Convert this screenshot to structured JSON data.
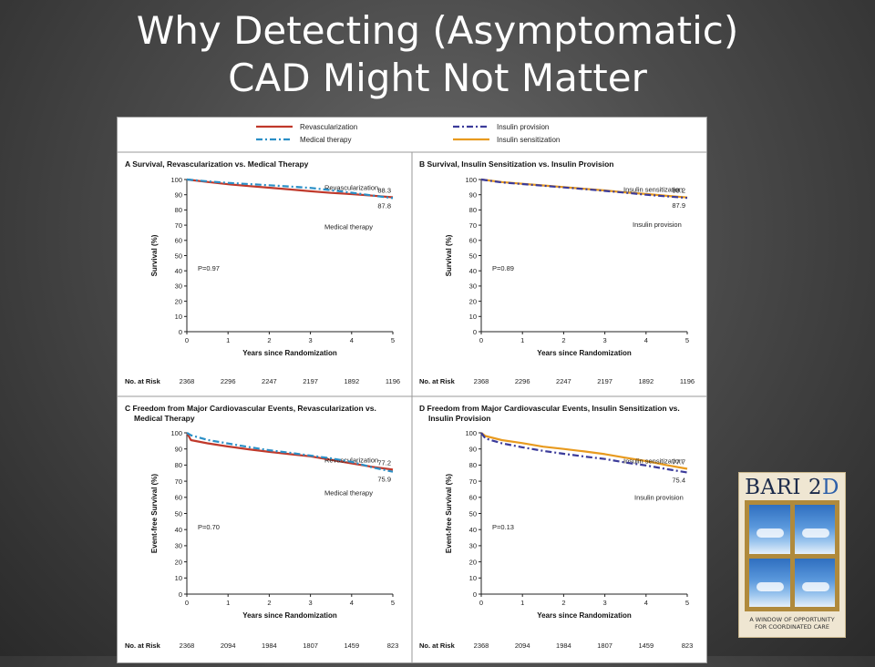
{
  "slide": {
    "title_line1": "Why Detecting (Asymptomatic)",
    "title_line2": "CAD Might Not Matter"
  },
  "legend": {
    "revasc": "Revascularization",
    "medical": "Medical therapy",
    "insprov": "Insulin provision",
    "inssens": "Insulin sensitization"
  },
  "colors": {
    "revasc": "#c0392b",
    "medical": "#2a8fc6",
    "insprov": "#3b3b9a",
    "inssens": "#e89a1e"
  },
  "logo": {
    "name": "BARI 2",
    "name_accent": "D",
    "tagline_line1": "A WINDOW OF OPPORTUNITY",
    "tagline_line2": "FOR COORDINATED CARE"
  },
  "common": {
    "xlabel": "Years since Randomization",
    "xticks": [
      "0",
      "1",
      "2",
      "3",
      "4",
      "5"
    ],
    "yticks": [
      "0",
      "10",
      "20",
      "30",
      "40",
      "50",
      "60",
      "70",
      "80",
      "90",
      "100"
    ],
    "risk_label": "No. at Risk"
  },
  "chart_data": [
    {
      "type": "line",
      "panel_letter": "A",
      "title": "Survival, Revascularization vs. Medical Therapy",
      "title2": "",
      "xlabel": "Years since Randomization",
      "ylabel": "Survival (%)",
      "xlim": [
        0,
        5
      ],
      "ylim": [
        0,
        100
      ],
      "pvalue": "P=0.97",
      "series": [
        {
          "name": "Revascularization",
          "key": "revasc",
          "end_label": "88.3",
          "x": [
            0,
            0.5,
            1,
            1.5,
            2,
            2.5,
            3,
            3.5,
            4,
            4.5,
            5
          ],
          "y": [
            100,
            98.4,
            96.9,
            95.7,
            94.6,
            93.5,
            92.3,
            91.2,
            90.4,
            89.4,
            88.3
          ]
        },
        {
          "name": "Medical therapy",
          "key": "medical",
          "end_label": "87.8",
          "x": [
            0,
            0.5,
            1,
            1.5,
            2,
            2.5,
            3,
            3.5,
            4,
            4.5,
            5
          ],
          "y": [
            100,
            98.8,
            97.8,
            97.0,
            96.2,
            95.4,
            94.5,
            93.0,
            91.3,
            89.5,
            87.8
          ]
        }
      ],
      "annotations": [
        "Revascularization",
        "Medical therapy"
      ],
      "at_risk": [
        "2368",
        "2296",
        "2247",
        "2197",
        "1892",
        "1196"
      ]
    },
    {
      "type": "line",
      "panel_letter": "B",
      "title": "Survival, Insulin Sensitization vs. Insulin Provision",
      "title2": "",
      "xlabel": "Years since Randomization",
      "ylabel": "Survival (%)",
      "xlim": [
        0,
        5
      ],
      "ylim": [
        0,
        100
      ],
      "pvalue": "P=0.89",
      "series": [
        {
          "name": "Insulin sensitization",
          "key": "inssens",
          "end_label": "88.2",
          "x": [
            0,
            0.5,
            1,
            1.5,
            2,
            2.5,
            3,
            3.5,
            4,
            4.5,
            5
          ],
          "y": [
            100,
            98.3,
            97.2,
            96.1,
            95.0,
            93.9,
            92.8,
            91.5,
            90.5,
            89.3,
            88.2
          ]
        },
        {
          "name": "Insulin provision",
          "key": "insprov",
          "end_label": "87.9",
          "x": [
            0,
            0.5,
            1,
            1.5,
            2,
            2.5,
            3,
            3.5,
            4,
            4.5,
            5
          ],
          "y": [
            100,
            98.1,
            97.0,
            95.9,
            94.8,
            93.7,
            92.5,
            91.3,
            90.0,
            88.9,
            87.9
          ]
        }
      ],
      "annotations": [
        "Insulin sensitization",
        "Insulin provision"
      ],
      "at_risk": [
        "2368",
        "2296",
        "2247",
        "2197",
        "1892",
        "1196"
      ]
    },
    {
      "type": "line",
      "panel_letter": "C",
      "title": "Freedom from Major Cardiovascular Events, Revascularization vs.",
      "title2": "Medical Therapy",
      "xlabel": "Years since Randomization",
      "ylabel": "Event-free Survival (%)",
      "xlim": [
        0,
        5
      ],
      "ylim": [
        0,
        100
      ],
      "pvalue": "P=0.70",
      "series": [
        {
          "name": "Revascularization",
          "key": "revasc",
          "end_label": "77.2",
          "x": [
            0,
            0.1,
            0.5,
            1,
            1.5,
            2,
            2.5,
            3,
            3.5,
            4,
            4.5,
            5
          ],
          "y": [
            100,
            95.5,
            93.5,
            91.5,
            89.8,
            88.2,
            86.8,
            85.4,
            83.2,
            81.0,
            78.9,
            77.2
          ]
        },
        {
          "name": "Medical therapy",
          "key": "medical",
          "end_label": "75.9",
          "x": [
            0,
            0.1,
            0.5,
            1,
            1.5,
            2,
            2.5,
            3,
            3.5,
            4,
            4.5,
            5
          ],
          "y": [
            100,
            98.5,
            95.6,
            93.4,
            91.2,
            89.2,
            87.6,
            85.9,
            84.2,
            82.0,
            78.6,
            75.9
          ]
        }
      ],
      "annotations": [
        "Revascularization",
        "Medical therapy"
      ],
      "at_risk": [
        "2368",
        "2094",
        "1984",
        "1807",
        "1459",
        "823"
      ]
    },
    {
      "type": "line",
      "panel_letter": "D",
      "title": "Freedom from Major Cardiovascular Events, Insulin Sensitization vs.",
      "title2": "Insulin Provision",
      "xlabel": "Years since Randomization",
      "ylabel": "Event-free Survival (%)",
      "xlim": [
        0,
        5
      ],
      "ylim": [
        0,
        100
      ],
      "pvalue": "P=0.13",
      "series": [
        {
          "name": "Insulin sensitization",
          "key": "inssens",
          "end_label": "77.7",
          "x": [
            0,
            0.1,
            0.5,
            1,
            1.5,
            2,
            2.5,
            3,
            3.5,
            4,
            4.5,
            5
          ],
          "y": [
            100,
            98.0,
            95.5,
            93.6,
            91.4,
            90.0,
            88.5,
            86.8,
            84.6,
            82.5,
            80.0,
            77.7
          ]
        },
        {
          "name": "Insulin provision",
          "key": "insprov",
          "end_label": "75.4",
          "x": [
            0,
            0.1,
            0.5,
            1,
            1.5,
            2,
            2.5,
            3,
            3.5,
            4,
            4.5,
            5
          ],
          "y": [
            100,
            96.5,
            93.5,
            91.0,
            88.8,
            87.0,
            85.3,
            83.8,
            81.6,
            79.8,
            77.5,
            75.4
          ]
        }
      ],
      "annotations": [
        "Insulin sensitization",
        "Insulin provision"
      ],
      "at_risk": [
        "2368",
        "2094",
        "1984",
        "1807",
        "1459",
        "823"
      ]
    }
  ]
}
